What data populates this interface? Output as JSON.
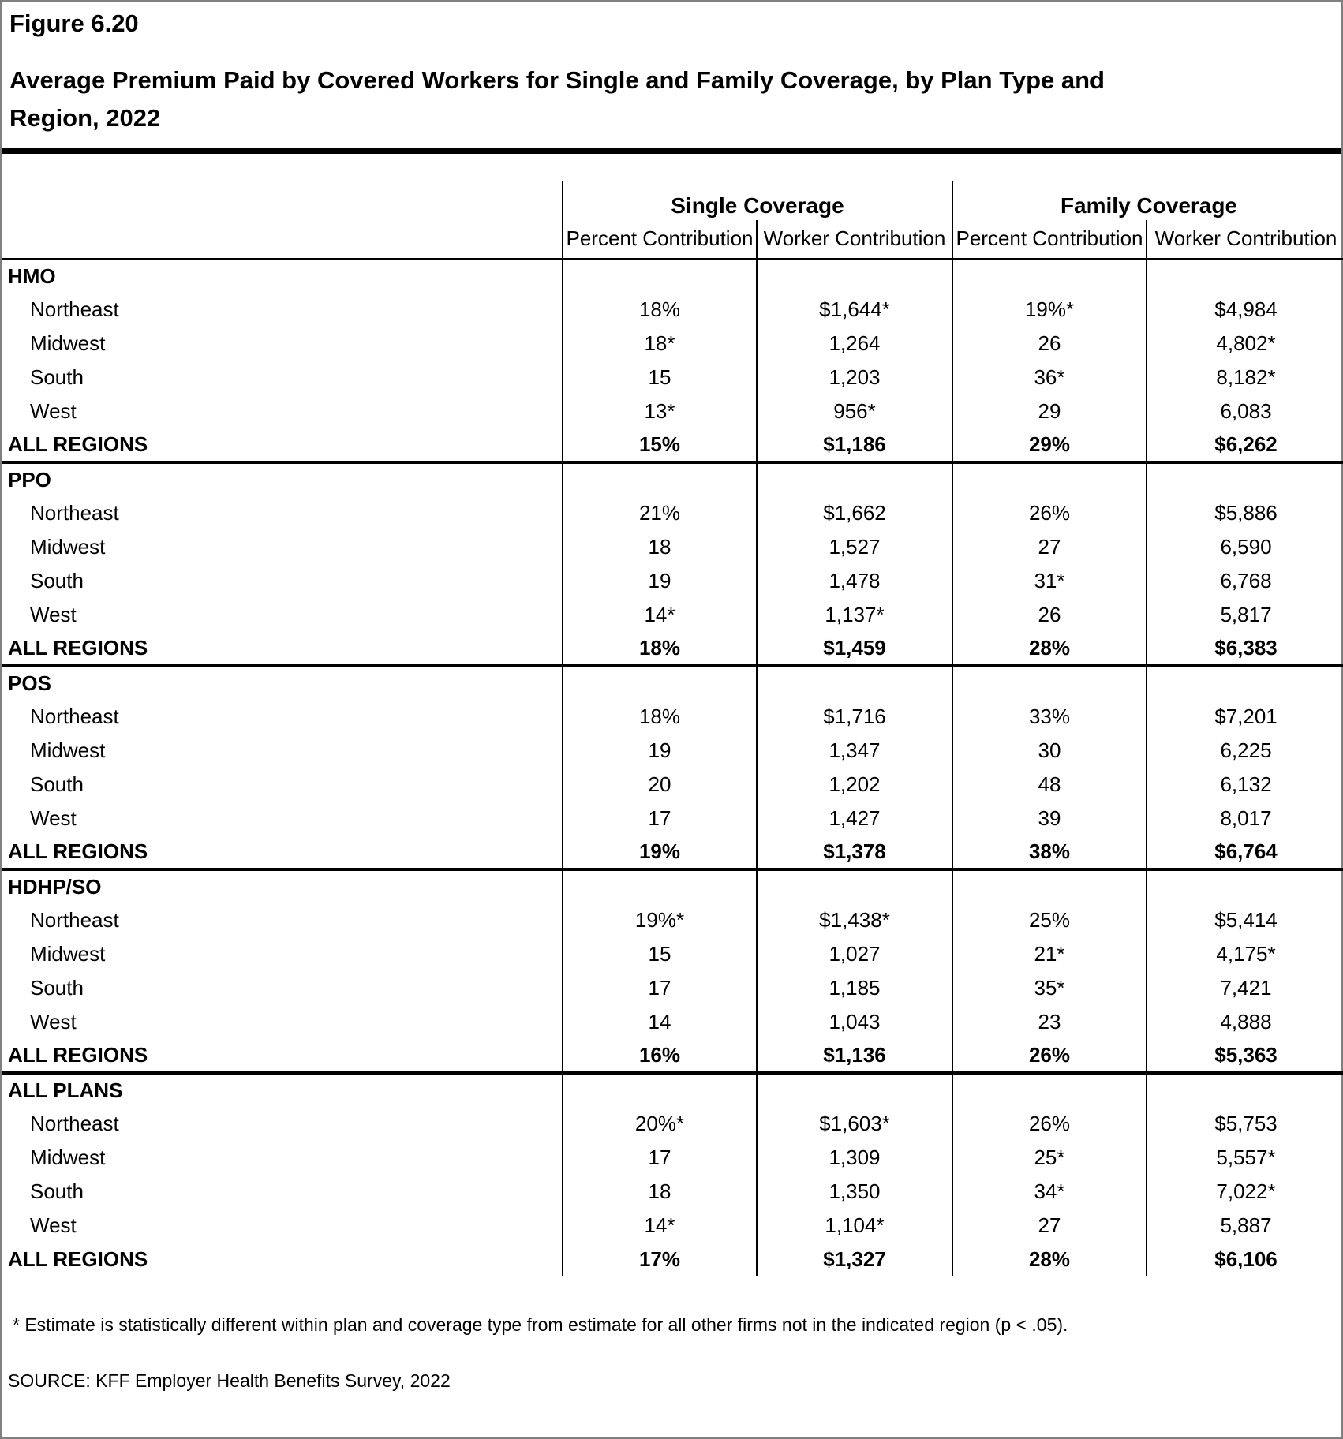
{
  "figure": {
    "label": "Figure 6.20",
    "title_line1": "Average Premium Paid by Covered Workers for Single and Family Coverage, by Plan Type and",
    "title_line2": "Region, 2022"
  },
  "table": {
    "groups": [
      {
        "label": "Single Coverage"
      },
      {
        "label": "Family Coverage"
      }
    ],
    "subheaders": [
      "Percent Contribution",
      "Worker Contribution",
      "Percent Contribution",
      "Worker Contribution"
    ],
    "sections": [
      {
        "label": "HMO",
        "rows": [
          {
            "region": "Northeast",
            "values": [
              "18%",
              "$1,644*",
              "19%*",
              "$4,984"
            ]
          },
          {
            "region": "Midwest",
            "values": [
              "18*",
              "1,264",
              "26",
              "4,802*"
            ]
          },
          {
            "region": "South",
            "values": [
              "15",
              "1,203",
              "36*",
              "8,182*"
            ]
          },
          {
            "region": "West",
            "values": [
              "13*",
              "956*",
              "29",
              "6,083"
            ]
          }
        ],
        "total": {
          "region": "ALL REGIONS",
          "values": [
            "15%",
            "$1,186",
            "29%",
            "$6,262"
          ]
        }
      },
      {
        "label": "PPO",
        "rows": [
          {
            "region": "Northeast",
            "values": [
              "21%",
              "$1,662",
              "26%",
              "$5,886"
            ]
          },
          {
            "region": "Midwest",
            "values": [
              "18",
              "1,527",
              "27",
              "6,590"
            ]
          },
          {
            "region": "South",
            "values": [
              "19",
              "1,478",
              "31*",
              "6,768"
            ]
          },
          {
            "region": "West",
            "values": [
              "14*",
              "1,137*",
              "26",
              "5,817"
            ]
          }
        ],
        "total": {
          "region": "ALL REGIONS",
          "values": [
            "18%",
            "$1,459",
            "28%",
            "$6,383"
          ]
        }
      },
      {
        "label": "POS",
        "rows": [
          {
            "region": "Northeast",
            "values": [
              "18%",
              "$1,716",
              "33%",
              "$7,201"
            ]
          },
          {
            "region": "Midwest",
            "values": [
              "19",
              "1,347",
              "30",
              "6,225"
            ]
          },
          {
            "region": "South",
            "values": [
              "20",
              "1,202",
              "48",
              "6,132"
            ]
          },
          {
            "region": "West",
            "values": [
              "17",
              "1,427",
              "39",
              "8,017"
            ]
          }
        ],
        "total": {
          "region": "ALL REGIONS",
          "values": [
            "19%",
            "$1,378",
            "38%",
            "$6,764"
          ]
        }
      },
      {
        "label": "HDHP/SO",
        "rows": [
          {
            "region": "Northeast",
            "values": [
              "19%*",
              "$1,438*",
              "25%",
              "$5,414"
            ]
          },
          {
            "region": "Midwest",
            "values": [
              "15",
              "1,027",
              "21*",
              "4,175*"
            ]
          },
          {
            "region": "South",
            "values": [
              "17",
              "1,185",
              "35*",
              "7,421"
            ]
          },
          {
            "region": "West",
            "values": [
              "14",
              "1,043",
              "23",
              "4,888"
            ]
          }
        ],
        "total": {
          "region": "ALL REGIONS",
          "values": [
            "16%",
            "$1,136",
            "26%",
            "$5,363"
          ]
        }
      },
      {
        "label": "ALL PLANS",
        "rows": [
          {
            "region": "Northeast",
            "values": [
              "20%*",
              "$1,603*",
              "26%",
              "$5,753"
            ]
          },
          {
            "region": "Midwest",
            "values": [
              "17",
              "1,309",
              "25*",
              "5,557*"
            ]
          },
          {
            "region": "South",
            "values": [
              "18",
              "1,350",
              "34*",
              "7,022*"
            ]
          },
          {
            "region": "West",
            "values": [
              "14*",
              "1,104*",
              "27",
              "5,887"
            ]
          }
        ],
        "total": {
          "region": "ALL REGIONS",
          "values": [
            "17%",
            "$1,327",
            "28%",
            "$6,106"
          ]
        }
      }
    ]
  },
  "footnote": "* Estimate is statistically different within plan and coverage type from estimate for all other firms not in the indicated region (p < .05).",
  "source": "SOURCE: KFF Employer Health Benefits Survey, 2022"
}
